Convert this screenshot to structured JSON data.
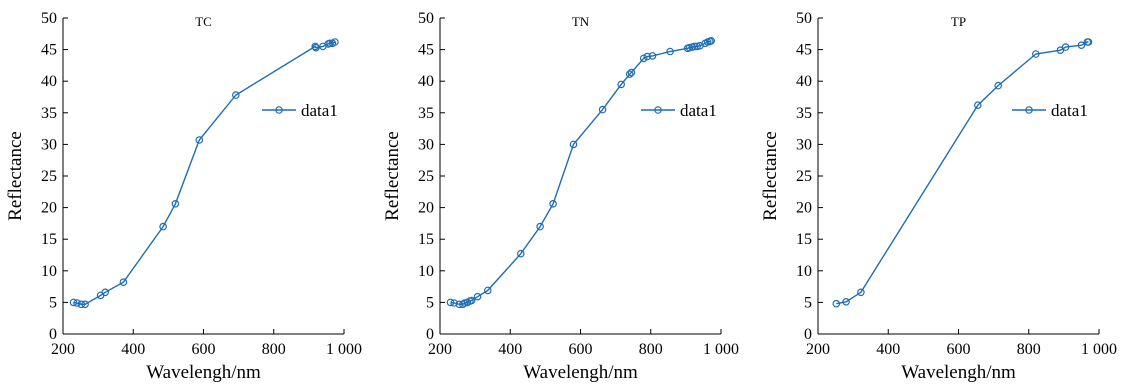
{
  "chart_data": [
    {
      "type": "line",
      "title": "TC",
      "xlabel": "Wavelengh/nm",
      "ylabel": "Reflectance",
      "xlim": [
        200,
        1000
      ],
      "ylim": [
        0,
        50
      ],
      "xticks": [
        200,
        400,
        600,
        800,
        1000
      ],
      "xtick_labels": [
        "200",
        "400",
        "600",
        "800",
        "1 000"
      ],
      "yticks": [
        0,
        5,
        10,
        15,
        20,
        25,
        30,
        35,
        40,
        45,
        50
      ],
      "ytick_labels": [
        "0",
        "5",
        "10",
        "15",
        "20",
        "25",
        "30",
        "35",
        "40",
        "45",
        "50"
      ],
      "grid": false,
      "legend_position": "upper-right",
      "color": "#1f6db3",
      "series": [
        {
          "name": "data1",
          "x": [
            230,
            240,
            252,
            263,
            307,
            320,
            372,
            485,
            520,
            588,
            692,
            918,
            920,
            940,
            955,
            960,
            967,
            974
          ],
          "y": [
            5.0,
            4.9,
            4.7,
            4.7,
            6.1,
            6.6,
            8.2,
            17.0,
            20.6,
            30.7,
            37.8,
            45.5,
            45.3,
            45.5,
            45.9,
            46.0,
            46.0,
            46.2
          ]
        }
      ]
    },
    {
      "type": "line",
      "title": "TN",
      "xlabel": "Wavelengh/nm",
      "ylabel": "Reflectance",
      "xlim": [
        200,
        1000
      ],
      "ylim": [
        0,
        50
      ],
      "xticks": [
        200,
        400,
        600,
        800,
        1000
      ],
      "xtick_labels": [
        "200",
        "400",
        "600",
        "800",
        "1 000"
      ],
      "yticks": [
        0,
        5,
        10,
        15,
        20,
        25,
        30,
        35,
        40,
        45,
        50
      ],
      "ytick_labels": [
        "0",
        "5",
        "10",
        "15",
        "20",
        "25",
        "30",
        "35",
        "40",
        "45",
        "50"
      ],
      "grid": false,
      "legend_position": "upper-right",
      "color": "#1f6db3",
      "series": [
        {
          "name": "data1",
          "x": [
            230,
            240,
            255,
            265,
            270,
            278,
            285,
            290,
            307,
            336,
            430,
            485,
            522,
            580,
            663,
            716,
            740,
            745,
            780,
            790,
            805,
            855,
            905,
            910,
            918,
            925,
            932,
            940,
            955,
            962,
            968,
            972
          ],
          "y": [
            5.0,
            4.9,
            4.7,
            4.7,
            4.9,
            5.0,
            5.2,
            5.3,
            5.9,
            6.9,
            12.7,
            17.0,
            20.6,
            30.0,
            35.5,
            39.5,
            41.1,
            41.4,
            43.6,
            43.9,
            44.0,
            44.7,
            45.2,
            45.3,
            45.4,
            45.5,
            45.5,
            45.6,
            46.0,
            46.2,
            46.3,
            46.4
          ]
        }
      ]
    },
    {
      "type": "line",
      "title": "TP",
      "xlabel": "Wavelengh/nm",
      "ylabel": "Reflectance",
      "xlim": [
        200,
        1000
      ],
      "ylim": [
        0,
        50
      ],
      "xticks": [
        200,
        400,
        600,
        800,
        1000
      ],
      "xtick_labels": [
        "200",
        "400",
        "600",
        "800",
        "1 000"
      ],
      "yticks": [
        0,
        5,
        10,
        15,
        20,
        25,
        30,
        35,
        40,
        45,
        50
      ],
      "ytick_labels": [
        "0",
        "5",
        "10",
        "15",
        "20",
        "25",
        "30",
        "35",
        "40",
        "45",
        "50"
      ],
      "grid": false,
      "legend_position": "upper-right",
      "color": "#1f6db3",
      "series": [
        {
          "name": "data1",
          "x": [
            252,
            280,
            322,
            655,
            713,
            820,
            890,
            905,
            950,
            967,
            970
          ],
          "y": [
            4.8,
            5.1,
            6.6,
            36.2,
            39.3,
            44.3,
            44.9,
            45.4,
            45.7,
            46.2,
            46.2
          ]
        }
      ]
    }
  ]
}
